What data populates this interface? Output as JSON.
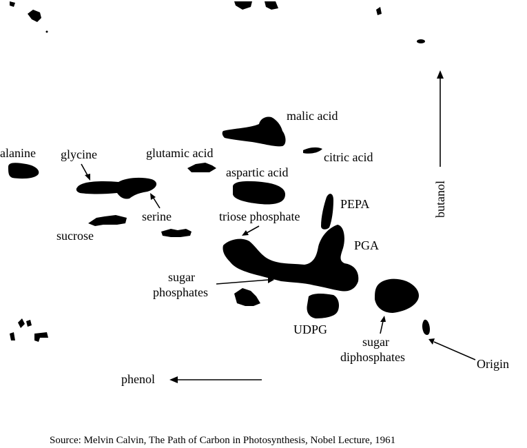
{
  "colors": {
    "ink": "#000000",
    "background": "#ffffff"
  },
  "labels": {
    "alanine": "alanine",
    "glycine": "glycine",
    "glutamic_acid": "glutamic acid",
    "malic_acid": "malic acid",
    "citric_acid": "citric acid",
    "aspartic_acid": "aspartic acid",
    "serine": "serine",
    "sucrose": "sucrose",
    "triose_phosphate": "triose phosphate",
    "pepa": "PEPA",
    "pga": "PGA",
    "sugar_phosphates_line1": "sugar",
    "sugar_phosphates_line2": "phosphates",
    "udpg": "UDPG",
    "sugar_diphosphates_line1": "sugar",
    "sugar_diphosphates_line2": "diphosphates",
    "origin": "Origin",
    "butanol": "butanol",
    "phenol": "phenol"
  },
  "source": "Source: Melvin Calvin, The Path of Carbon in Photosynthesis, Nobel Lecture, 1961"
}
